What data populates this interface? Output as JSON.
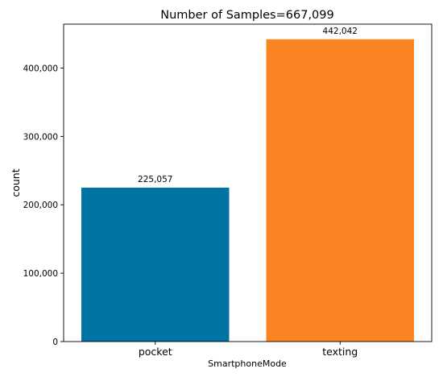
{
  "chart_data": {
    "type": "bar",
    "title": "Number of Samples=667,099",
    "xlabel": "SmartphoneMode",
    "ylabel": "count",
    "categories": [
      "pocket",
      "texting"
    ],
    "values": [
      225057,
      442042
    ],
    "data_labels": [
      "225,057",
      "442,042"
    ],
    "colors": [
      "#0173a3",
      "#fb8422"
    ],
    "ylim": [
      0,
      464144
    ],
    "yticks": [
      0,
      100000,
      200000,
      300000,
      400000
    ],
    "ytick_labels": [
      "0",
      "100,000",
      "200,000",
      "300,000",
      "400,000"
    ],
    "grid": false,
    "legend": false
  }
}
